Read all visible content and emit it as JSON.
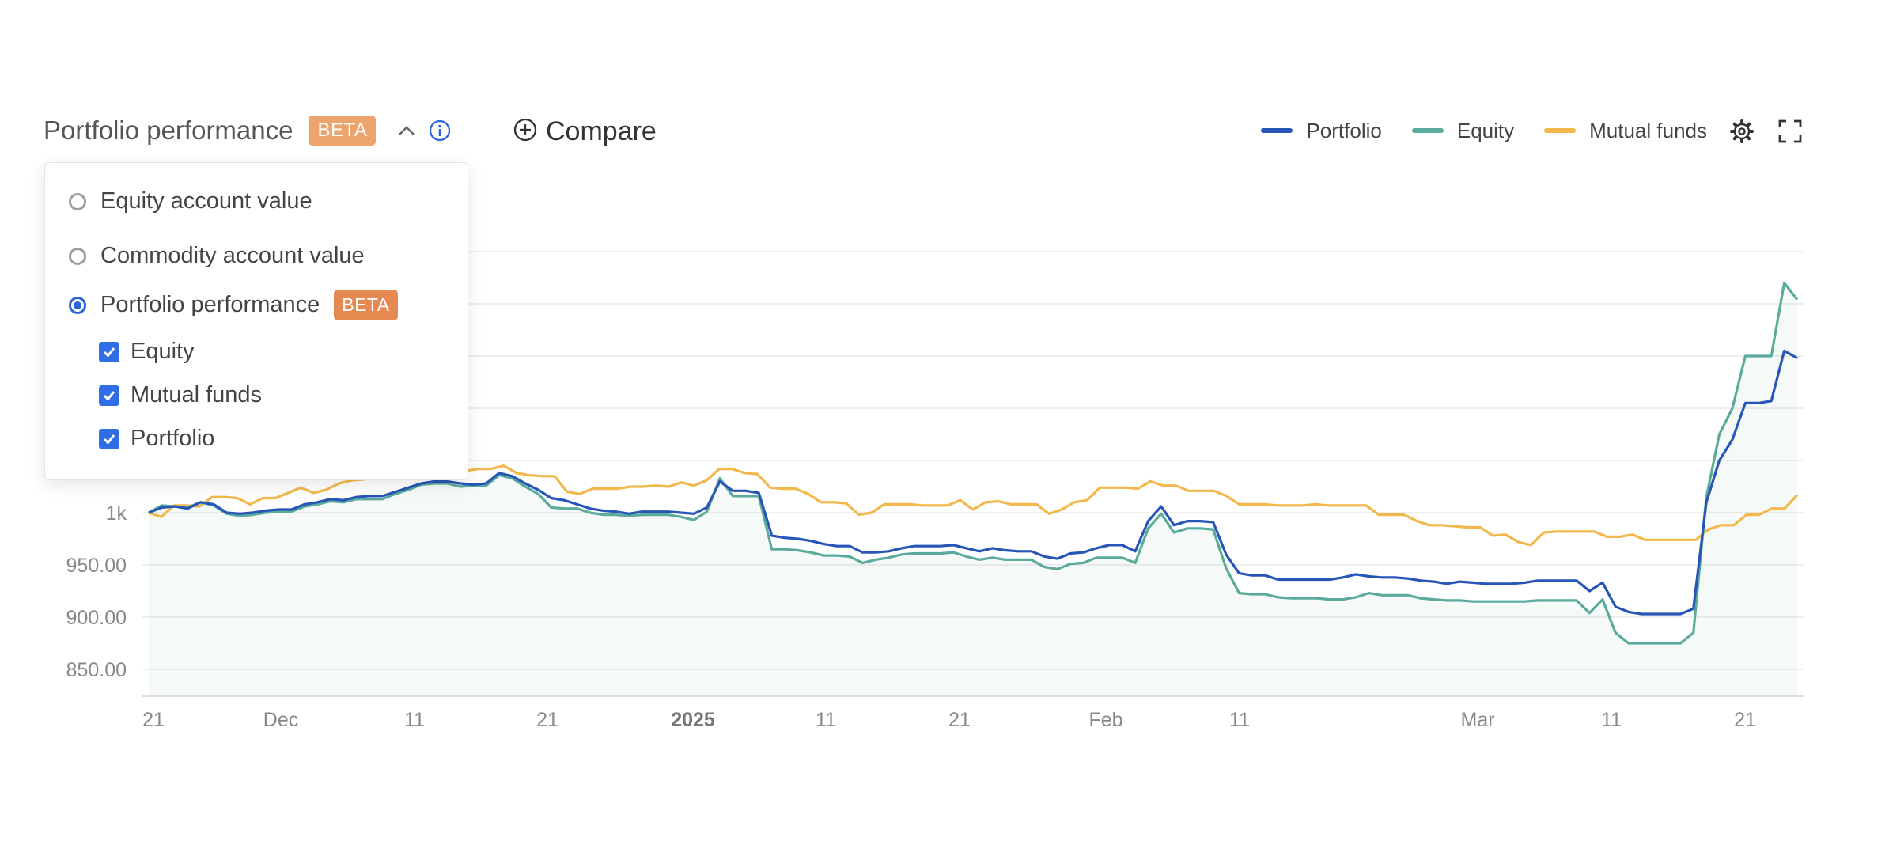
{
  "header": {
    "title": "Portfolio performance",
    "badge": "BETA",
    "badge_color": "#eda46c",
    "collapse_icon": "chevron-up-icon",
    "info_icon": "info-icon"
  },
  "compare": {
    "label": "Compare",
    "icon": "plus-circle-icon"
  },
  "legend": [
    {
      "label": "Portfolio",
      "color": "#2755b8"
    },
    {
      "label": "Equity",
      "color": "#5aab9b"
    },
    {
      "label": "Mutual funds",
      "color": "#f2b84b"
    }
  ],
  "toolbar": {
    "settings_icon": "gear-icon",
    "fullscreen_icon": "fullscreen-icon"
  },
  "dropdown": {
    "options": [
      {
        "label": "Equity account value",
        "selected": false
      },
      {
        "label": "Commodity account value",
        "selected": false
      },
      {
        "label": "Portfolio performance",
        "selected": true,
        "badge": "BETA",
        "badge_color": "#e68a52"
      }
    ],
    "sub_options": [
      {
        "label": "Equity",
        "checked": true
      },
      {
        "label": "Mutual funds",
        "checked": true
      },
      {
        "label": "Portfolio",
        "checked": true
      }
    ]
  },
  "chart_data": {
    "type": "line",
    "x_ticks": [
      "21",
      "Dec",
      "11",
      "21",
      "2025",
      "11",
      "21",
      "Feb",
      "11",
      "Mar",
      "11",
      "21"
    ],
    "x_tick_bold": "2025",
    "y_ticks": [
      "850.00",
      "900.00",
      "950.00",
      "1k"
    ],
    "ylim": [
      825,
      1300
    ],
    "grid": true,
    "legend_position": "top-right",
    "series": [
      {
        "name": "Portfolio",
        "color": "#2755b8",
        "values": [
          1000,
          1005,
          1006,
          1004,
          1010,
          1008,
          1000,
          999,
          1000,
          1002,
          1003,
          1003,
          1008,
          1010,
          1013,
          1012,
          1015,
          1016,
          1016,
          1020,
          1024,
          1028,
          1030,
          1030,
          1028,
          1027,
          1028,
          1038,
          1035,
          1028,
          1022,
          1014,
          1012,
          1008,
          1004,
          1002,
          1001,
          999,
          1001,
          1001,
          1001,
          1000,
          999,
          1005,
          1030,
          1021,
          1021,
          1019,
          978,
          976,
          975,
          973,
          970,
          968,
          968,
          962,
          962,
          963,
          966,
          968,
          968,
          968,
          969,
          966,
          963,
          966,
          964,
          963,
          963,
          958,
          956,
          961,
          962,
          966,
          969,
          969,
          963,
          992,
          1006,
          988,
          992,
          992,
          991,
          960,
          942,
          940,
          940,
          936,
          936,
          936,
          936,
          936,
          938,
          941,
          939,
          938,
          938,
          937,
          935,
          934,
          932,
          934,
          933,
          932,
          932,
          932,
          933,
          935,
          935,
          935,
          935,
          925,
          933,
          910,
          905,
          903,
          903,
          903,
          903,
          908,
          1010,
          1050,
          1070,
          1105,
          1105,
          1107,
          1155,
          1148
        ]
      },
      {
        "name": "Equity",
        "color": "#5aab9b",
        "values": [
          1000,
          1007,
          1006,
          1005,
          1010,
          1007,
          999,
          997,
          998,
          1000,
          1001,
          1001,
          1006,
          1008,
          1011,
          1010,
          1013,
          1013,
          1013,
          1018,
          1022,
          1027,
          1028,
          1028,
          1025,
          1026,
          1026,
          1036,
          1033,
          1025,
          1018,
          1005,
          1004,
          1004,
          1000,
          998,
          998,
          997,
          998,
          998,
          998,
          996,
          993,
          1001,
          1033,
          1016,
          1016,
          1016,
          965,
          965,
          964,
          962,
          959,
          959,
          958,
          952,
          955,
          957,
          960,
          961,
          961,
          961,
          962,
          958,
          955,
          957,
          955,
          955,
          955,
          948,
          946,
          951,
          952,
          957,
          957,
          957,
          952,
          985,
          999,
          981,
          985,
          985,
          984,
          947,
          923,
          922,
          922,
          919,
          918,
          918,
          918,
          917,
          917,
          919,
          923,
          921,
          921,
          921,
          918,
          917,
          916,
          916,
          915,
          915,
          915,
          915,
          915,
          916,
          916,
          916,
          916,
          904,
          917,
          885,
          875,
          875,
          875,
          875,
          875,
          885,
          1015,
          1075,
          1100,
          1150,
          1150,
          1150,
          1220,
          1204
        ]
      },
      {
        "name": "Mutual funds",
        "color": "#f2b84b",
        "values": [
          1000,
          996,
          1007,
          1007,
          1006,
          1015,
          1015,
          1014,
          1008,
          1014,
          1014,
          1019,
          1024,
          1019,
          1022,
          1028,
          1031,
          1032,
          1038,
          1041,
          1039,
          1039,
          1039,
          1041,
          1040,
          1040,
          1042,
          1042,
          1045,
          1038,
          1036,
          1035,
          1035,
          1020,
          1018,
          1023,
          1023,
          1023,
          1025,
          1025,
          1026,
          1025,
          1029,
          1026,
          1031,
          1042,
          1042,
          1038,
          1037,
          1024,
          1023,
          1023,
          1018,
          1010,
          1010,
          1009,
          998,
          1000,
          1008,
          1008,
          1008,
          1007,
          1007,
          1007,
          1012,
          1003,
          1010,
          1011,
          1008,
          1008,
          1008,
          999,
          1003,
          1010,
          1012,
          1024,
          1024,
          1024,
          1023,
          1030,
          1026,
          1026,
          1021,
          1021,
          1021,
          1016,
          1008,
          1008,
          1008,
          1007,
          1007,
          1007,
          1008,
          1007,
          1007,
          1007,
          1007,
          998,
          998,
          998,
          992,
          988,
          988,
          987,
          986,
          986,
          978,
          979,
          972,
          969,
          981,
          982,
          982,
          982,
          982,
          977,
          977,
          979,
          974,
          974,
          974,
          974,
          974,
          984,
          988,
          988,
          998,
          998,
          1004,
          1004,
          1017
        ]
      }
    ]
  }
}
